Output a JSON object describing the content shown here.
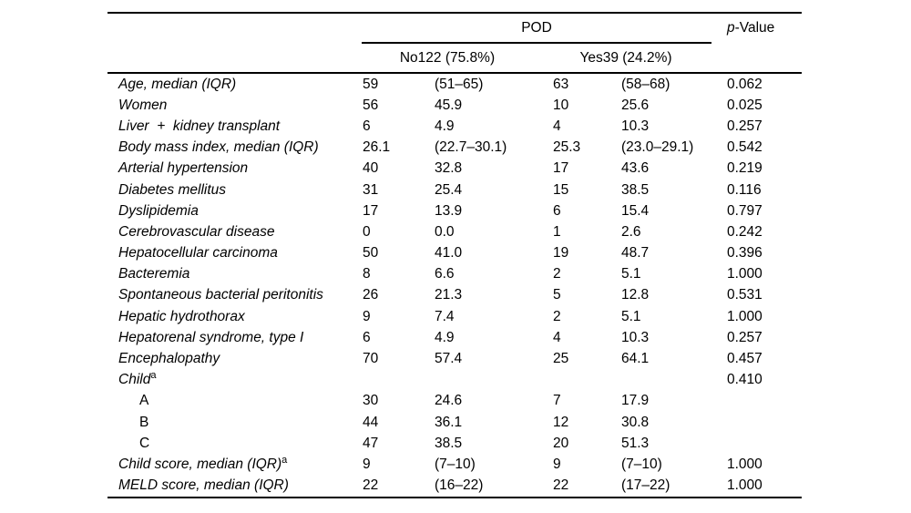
{
  "page": {
    "background_color": "#ffffff",
    "text_color": "#000000"
  },
  "table": {
    "header": {
      "group_label": "POD",
      "p_label": {
        "italic": "p",
        "rest": "-Value"
      },
      "subcolumns": {
        "no": "No122 (75.8%)",
        "yes": "Yes39 (24.2%)"
      }
    },
    "footnote_marker": "a",
    "rows": [
      {
        "label": "Age, median (IQR)",
        "sup": "",
        "indent": false,
        "upright": false,
        "n_no": "59",
        "pct_no": "(51–65)",
        "n_yes": "63",
        "pct_yes": "(58–68)",
        "p": "0.062"
      },
      {
        "label": "Women",
        "sup": "",
        "indent": false,
        "upright": false,
        "n_no": "56",
        "pct_no": "45.9",
        "n_yes": "10",
        "pct_yes": "25.6",
        "p": "0.025"
      },
      {
        "label": "Liver  +  kidney transplant",
        "sup": "",
        "indent": false,
        "upright": false,
        "n_no": "6",
        "pct_no": "4.9",
        "n_yes": "4",
        "pct_yes": "10.3",
        "p": "0.257"
      },
      {
        "label": "Body mass index, median (IQR)",
        "sup": "",
        "indent": false,
        "upright": false,
        "n_no": "26.1",
        "pct_no": "(22.7–30.1)",
        "n_yes": "25.3",
        "pct_yes": "(23.0–29.1)",
        "p": "0.542"
      },
      {
        "label": "Arterial hypertension",
        "sup": "",
        "indent": false,
        "upright": false,
        "n_no": "40",
        "pct_no": "32.8",
        "n_yes": "17",
        "pct_yes": "43.6",
        "p": "0.219"
      },
      {
        "label": "Diabetes mellitus",
        "sup": "",
        "indent": false,
        "upright": false,
        "n_no": "31",
        "pct_no": "25.4",
        "n_yes": "15",
        "pct_yes": "38.5",
        "p": "0.116"
      },
      {
        "label": "Dyslipidemia",
        "sup": "",
        "indent": false,
        "upright": false,
        "n_no": "17",
        "pct_no": "13.9",
        "n_yes": "6",
        "pct_yes": "15.4",
        "p": "0.797"
      },
      {
        "label": "Cerebrovascular disease",
        "sup": "",
        "indent": false,
        "upright": false,
        "n_no": "0",
        "pct_no": "0.0",
        "n_yes": "1",
        "pct_yes": "2.6",
        "p": "0.242"
      },
      {
        "label": "Hepatocellular carcinoma",
        "sup": "",
        "indent": false,
        "upright": false,
        "n_no": "50",
        "pct_no": "41.0",
        "n_yes": "19",
        "pct_yes": "48.7",
        "p": "0.396"
      },
      {
        "label": "Bacteremia",
        "sup": "",
        "indent": false,
        "upright": false,
        "n_no": "8",
        "pct_no": "6.6",
        "n_yes": "2",
        "pct_yes": "5.1",
        "p": "1.000"
      },
      {
        "label": "Spontaneous bacterial peritonitis",
        "sup": "",
        "indent": false,
        "upright": false,
        "n_no": "26",
        "pct_no": "21.3",
        "n_yes": "5",
        "pct_yes": "12.8",
        "p": "0.531"
      },
      {
        "label": "Hepatic hydrothorax",
        "sup": "",
        "indent": false,
        "upright": false,
        "n_no": "9",
        "pct_no": "7.4",
        "n_yes": "2",
        "pct_yes": "5.1",
        "p": "1.000"
      },
      {
        "label": "Hepatorenal syndrome, type I",
        "sup": "",
        "indent": false,
        "upright": false,
        "n_no": "6",
        "pct_no": "4.9",
        "n_yes": "4",
        "pct_yes": "10.3",
        "p": "0.257"
      },
      {
        "label": "Encephalopathy",
        "sup": "",
        "indent": false,
        "upright": false,
        "n_no": "70",
        "pct_no": "57.4",
        "n_yes": "25",
        "pct_yes": "64.1",
        "p": "0.457"
      },
      {
        "label": "Child",
        "sup": "a",
        "indent": false,
        "upright": false,
        "n_no": "",
        "pct_no": "",
        "n_yes": "",
        "pct_yes": "",
        "p": "0.410"
      },
      {
        "label": "A",
        "sup": "",
        "indent": true,
        "upright": true,
        "n_no": "30",
        "pct_no": "24.6",
        "n_yes": "7",
        "pct_yes": "17.9",
        "p": ""
      },
      {
        "label": "B",
        "sup": "",
        "indent": true,
        "upright": true,
        "n_no": "44",
        "pct_no": "36.1",
        "n_yes": "12",
        "pct_yes": "30.8",
        "p": ""
      },
      {
        "label": "C",
        "sup": "",
        "indent": true,
        "upright": true,
        "n_no": "47",
        "pct_no": "38.5",
        "n_yes": "20",
        "pct_yes": "51.3",
        "p": ""
      },
      {
        "label": "Child score, median (IQR)",
        "sup": "a",
        "indent": false,
        "upright": false,
        "n_no": "9",
        "pct_no": "(7–10)",
        "n_yes": "9",
        "pct_yes": "(7–10)",
        "p": "1.000"
      },
      {
        "label": "MELD score, median (IQR)",
        "sup": "",
        "indent": false,
        "upright": false,
        "n_no": "22",
        "pct_no": "(16–22)",
        "n_yes": "22",
        "pct_yes": "(17–22)",
        "p": "1.000"
      }
    ]
  }
}
